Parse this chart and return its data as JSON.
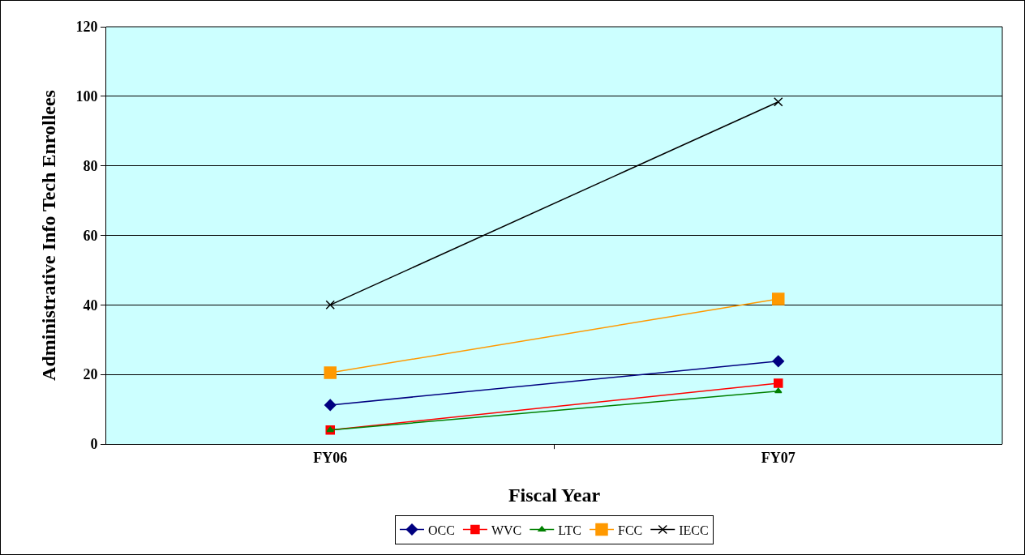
{
  "chart_data": {
    "type": "line",
    "xlabel": "Fiscal Year",
    "ylabel": "Administrative Info Tech Enrollees",
    "categories": [
      "FY06",
      "FY07"
    ],
    "series": [
      {
        "name": "OCC",
        "color": "#000080",
        "marker": "diamond",
        "values": [
          11.2,
          23.8
        ]
      },
      {
        "name": "WVC",
        "color": "#ff0000",
        "marker": "square",
        "values": [
          4,
          17.5
        ]
      },
      {
        "name": "LTC",
        "color": "#008000",
        "marker": "triangle",
        "values": [
          4,
          15.2
        ]
      },
      {
        "name": "FCC",
        "color": "#ff9900",
        "marker": "square",
        "values": [
          20.5,
          41.7
        ]
      },
      {
        "name": "IECC",
        "color": "#000000",
        "marker": "cross",
        "values": [
          40,
          98.4
        ]
      }
    ],
    "ylim": [
      0,
      120
    ],
    "yticks": [
      0,
      20,
      40,
      60,
      80,
      100,
      120
    ],
    "grid": "y",
    "legend": "bottom",
    "line_style": "solid"
  }
}
